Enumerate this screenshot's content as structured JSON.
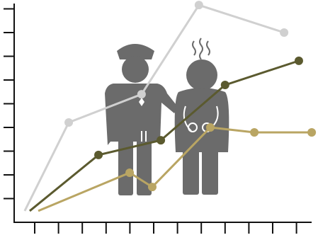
{
  "chart_data": {
    "type": "line",
    "xlim": [
      0,
      12.9
    ],
    "ylim": [
      0,
      9.3
    ],
    "xticks": [
      1,
      2,
      3,
      4,
      5,
      6,
      7,
      8,
      9,
      10,
      11,
      12
    ],
    "yticks": [
      1,
      2,
      3,
      4,
      5,
      6,
      7,
      8,
      9
    ],
    "series": [
      {
        "color": "#d0d0d0",
        "x": [
          0.58,
          2.43,
          5.49,
          7.9,
          11.48
        ],
        "values": [
          0.48,
          4.21,
          5.4,
          9.16,
          8.0
        ]
      },
      {
        "color": "#5b5a2f",
        "x": [
          0.79,
          3.68,
          6.3,
          9.0,
          12.1
        ],
        "values": [
          0.48,
          2.84,
          3.46,
          5.79,
          6.81
        ]
      },
      {
        "color": "#b9a563",
        "x": [
          1.15,
          4.99,
          5.94,
          8.38,
          10.23,
          12.64
        ],
        "values": [
          0.48,
          2.09,
          1.49,
          4.0,
          3.79,
          3.79
        ]
      }
    ]
  }
}
